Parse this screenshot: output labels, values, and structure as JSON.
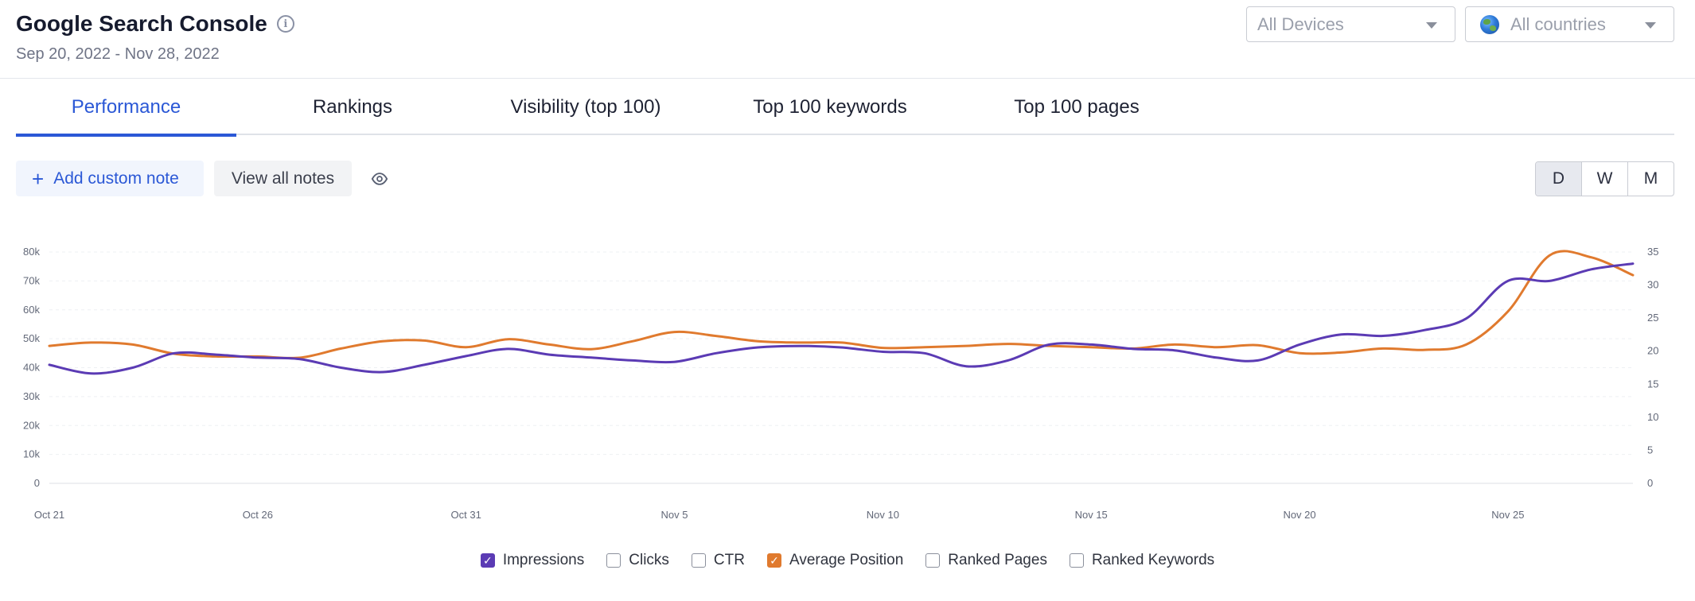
{
  "header": {
    "title": "Google Search Console",
    "date_range": "Sep 20, 2022 - Nov 28, 2022",
    "device_select": {
      "value": "All Devices"
    },
    "country_select": {
      "value": "All countries"
    }
  },
  "tabs": [
    {
      "label": "Performance",
      "active": true
    },
    {
      "label": "Rankings",
      "active": false
    },
    {
      "label": "Visibility (top 100)",
      "active": false
    },
    {
      "label": "Top 100 keywords",
      "active": false
    },
    {
      "label": "Top 100 pages",
      "active": false
    }
  ],
  "toolbar": {
    "add_note_label": "Add custom note",
    "view_notes_label": "View all notes",
    "granularity": [
      {
        "label": "D",
        "active": true
      },
      {
        "label": "W",
        "active": false
      },
      {
        "label": "M",
        "active": false
      }
    ]
  },
  "colors": {
    "accent": "#2b58d6",
    "impressions": "#5b3bb4",
    "average_position": "#e07a2e"
  },
  "chart_data": {
    "type": "line",
    "x": [
      "Oct 21",
      "Oct 22",
      "Oct 23",
      "Oct 24",
      "Oct 25",
      "Oct 26",
      "Oct 27",
      "Oct 28",
      "Oct 29",
      "Oct 30",
      "Oct 31",
      "Nov 1",
      "Nov 2",
      "Nov 3",
      "Nov 4",
      "Nov 5",
      "Nov 6",
      "Nov 7",
      "Nov 8",
      "Nov 9",
      "Nov 10",
      "Nov 11",
      "Nov 12",
      "Nov 13",
      "Nov 14",
      "Nov 15",
      "Nov 16",
      "Nov 17",
      "Nov 18",
      "Nov 19",
      "Nov 20",
      "Nov 21",
      "Nov 22",
      "Nov 23",
      "Nov 24",
      "Nov 25",
      "Nov 26",
      "Nov 27",
      "Nov 28"
    ],
    "x_ticks": [
      "Oct 21",
      "Oct 26",
      "Oct 31",
      "Nov 5",
      "Nov 10",
      "Nov 15",
      "Nov 20",
      "Nov 25"
    ],
    "y_left_ticks": [
      "0",
      "10k",
      "20k",
      "30k",
      "40k",
      "50k",
      "60k",
      "70k",
      "80k"
    ],
    "y_left_lim": [
      0,
      80000
    ],
    "y_right_ticks": [
      "0",
      "5",
      "10",
      "15",
      "20",
      "25",
      "30",
      "35"
    ],
    "y_right_lim": [
      0,
      35
    ],
    "grid": "horizontal",
    "legend_position": "bottom",
    "series": [
      {
        "name": "Impressions",
        "axis": "left",
        "color": "#5b3bb4",
        "checked": true,
        "values": [
          41000,
          38000,
          40000,
          45000,
          44500,
          43500,
          43000,
          40000,
          38500,
          41000,
          44000,
          46500,
          44500,
          43500,
          42500,
          42000,
          45000,
          47000,
          47500,
          47000,
          45500,
          45000,
          40500,
          42500,
          48000,
          48000,
          46500,
          46000,
          43500,
          42500,
          48000,
          51500,
          51000,
          53000,
          57000,
          70000,
          70000,
          74000,
          76000
        ],
        "checked_label": "Impressions"
      },
      {
        "name": "Clicks",
        "checked": false
      },
      {
        "name": "CTR",
        "checked": false
      },
      {
        "name": "Average Position",
        "axis": "right",
        "color": "#e07a2e",
        "checked": true,
        "values": [
          20.8,
          21.3,
          21.0,
          19.6,
          19.2,
          19.2,
          19.0,
          20.4,
          21.5,
          21.6,
          20.6,
          21.8,
          21.0,
          20.3,
          21.5,
          22.9,
          22.3,
          21.5,
          21.3,
          21.3,
          20.5,
          20.6,
          20.8,
          21.1,
          20.8,
          20.6,
          20.4,
          21.0,
          20.6,
          20.9,
          19.7,
          19.8,
          20.4,
          20.2,
          21.0,
          26.0,
          34.5,
          34.2,
          31.5
        ]
      },
      {
        "name": "Ranked Pages",
        "checked": false
      },
      {
        "name": "Ranked Keywords",
        "checked": false
      }
    ]
  }
}
